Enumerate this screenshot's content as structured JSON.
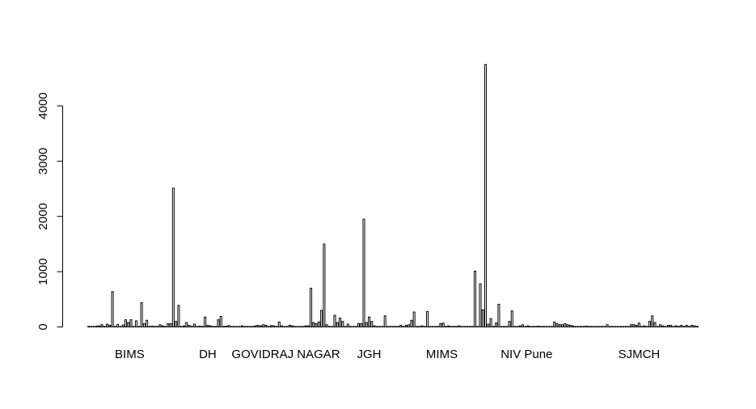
{
  "chart_data": {
    "type": "bar",
    "title": "",
    "xlabel": "",
    "ylabel": "",
    "ylim": [
      0,
      4800
    ],
    "yticks": [
      0,
      1000,
      2000,
      3000,
      4000
    ],
    "ytick_labels": [
      "0",
      "1000",
      "2000",
      "3000",
      "4000"
    ],
    "grid": false,
    "legend": "none",
    "bar_fill": "#ffffff",
    "bar_stroke": "#000000",
    "groups": [
      {
        "name": "BIMS",
        "values": [
          10,
          5,
          0,
          15,
          20,
          40,
          10,
          50,
          30,
          640,
          5,
          45,
          0,
          35,
          130,
          80,
          130,
          0,
          110,
          0,
          440,
          60,
          120,
          0,
          15,
          0,
          10,
          40,
          20,
          0,
          60,
          60
        ]
      },
      {
        "name": "DH",
        "values": [
          2510,
          100,
          390,
          0,
          20,
          80,
          30,
          0,
          50,
          0,
          15,
          0,
          180,
          30,
          20,
          0,
          0,
          130,
          190,
          0,
          15,
          25,
          0,
          0,
          0,
          0,
          20
        ]
      },
      {
        "name": "GOVIDRAJ NAGAR",
        "values": [
          0,
          0,
          0,
          0,
          20,
          30,
          20,
          40,
          30,
          0,
          25,
          20,
          0,
          90,
          20,
          0,
          0,
          30,
          20,
          0,
          0,
          0,
          0,
          20,
          20,
          700,
          80,
          60,
          90,
          300,
          1500,
          40
        ]
      },
      {
        "name": "JGH",
        "values": [
          0,
          0,
          210,
          80,
          160,
          100,
          0,
          50,
          0,
          0,
          0,
          60,
          60,
          1950,
          80,
          180,
          100,
          20,
          0,
          0,
          0,
          200,
          0,
          0,
          0,
          0,
          0,
          30,
          0,
          30,
          40
        ]
      },
      {
        "name": "MIMS",
        "values": [
          120,
          270,
          0,
          0,
          20,
          0,
          280,
          0,
          0,
          0,
          0,
          60,
          70,
          0,
          20,
          0,
          10,
          0,
          20,
          0,
          0,
          0,
          10,
          0
        ]
      },
      {
        "name": "NIV Pune",
        "values": [
          1010,
          0,
          780,
          310,
          4750,
          50,
          150,
          0,
          70,
          410,
          0,
          0,
          0,
          100,
          290,
          0,
          0,
          20,
          40,
          0,
          20,
          0,
          0,
          0,
          15,
          0,
          10,
          0,
          0,
          0,
          90,
          60,
          40,
          40,
          60,
          40,
          30,
          20,
          0,
          0
        ]
      },
      {
        "name": "SJMCH",
        "values": [
          10,
          0,
          15,
          10,
          0,
          0,
          0,
          0,
          0,
          0,
          40,
          0,
          0,
          0,
          0,
          0,
          0,
          0,
          0,
          40,
          40,
          30,
          70,
          0,
          20,
          0,
          100,
          200,
          80,
          0,
          40,
          20,
          0,
          30,
          30,
          0,
          20,
          10,
          30,
          10,
          30,
          0,
          30,
          20,
          10
        ]
      }
    ]
  }
}
